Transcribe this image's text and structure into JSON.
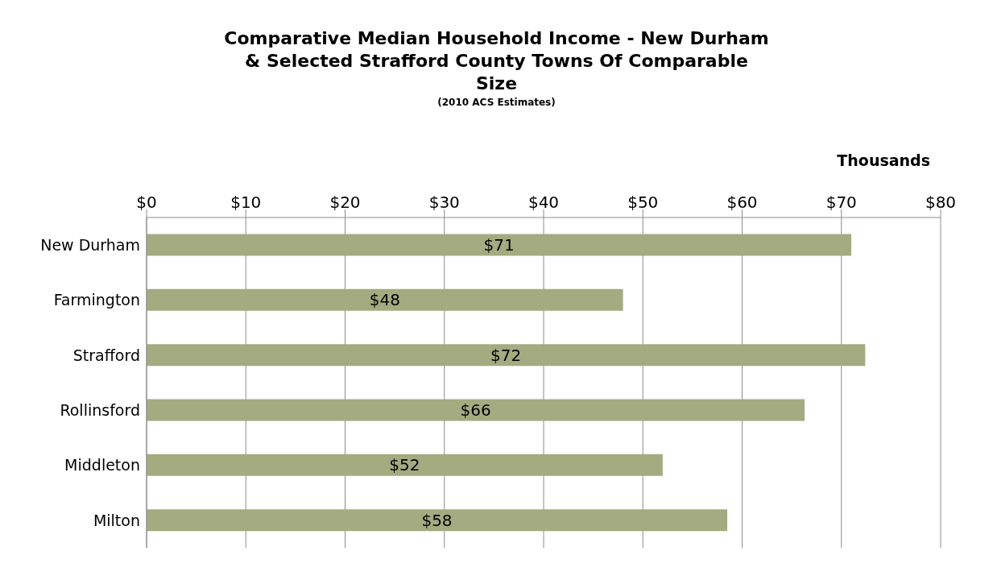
{
  "chart_data": {
    "type": "bar",
    "orientation": "horizontal",
    "title": "Comparative Median Household Income - New Durham & Selected Strafford County Towns Of Comparable Size",
    "subtitle": "(2010 ACS Estimates)",
    "xlabel": "Thousands",
    "categories": [
      "New Durham",
      "Farmington",
      "Strafford",
      "Rollinsford",
      "Middleton",
      "Milton"
    ],
    "values": [
      71,
      48.0,
      72.4,
      66.3,
      52.0,
      58.5
    ],
    "value_labels": [
      "$71",
      "$48",
      "$72",
      "$66",
      "$52",
      "$58"
    ],
    "color": "#a4ab80",
    "xlim": [
      0,
      80
    ],
    "xticks": [
      {
        "value": 0,
        "label": "$0"
      },
      {
        "value": 10,
        "label": "$10"
      },
      {
        "value": 20,
        "label": "$20"
      },
      {
        "value": 30,
        "label": "$30"
      },
      {
        "value": 40,
        "label": "$40"
      },
      {
        "value": 50,
        "label": "$50"
      },
      {
        "value": 60,
        "label": "$60"
      },
      {
        "value": 70,
        "label": "$70"
      },
      {
        "value": 80,
        "label": "$80"
      }
    ],
    "grid": "x"
  }
}
